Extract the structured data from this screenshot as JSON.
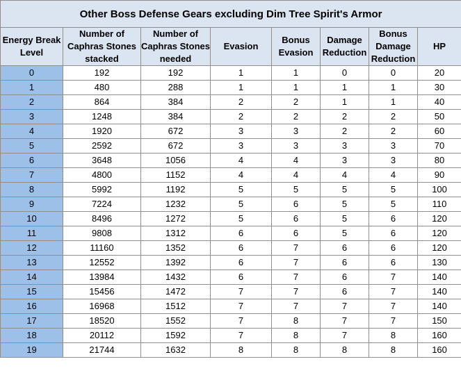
{
  "title": "Other Boss Defense Gears excluding Dim Tree Spirit's Armor",
  "headers": [
    "Energy Break Level",
    "Number of Caphras Stones stacked",
    "Number of Caphras Stones needed",
    "Evasion",
    "Bonus Evasion",
    "Damage Reduction",
    "Bonus Damage Reduction",
    "HP"
  ],
  "rows": [
    [
      "0",
      "192",
      "192",
      "1",
      "1",
      "0",
      "0",
      "20"
    ],
    [
      "1",
      "480",
      "288",
      "1",
      "1",
      "1",
      "1",
      "30"
    ],
    [
      "2",
      "864",
      "384",
      "2",
      "2",
      "1",
      "1",
      "40"
    ],
    [
      "3",
      "1248",
      "384",
      "2",
      "2",
      "2",
      "2",
      "50"
    ],
    [
      "4",
      "1920",
      "672",
      "3",
      "3",
      "2",
      "2",
      "60"
    ],
    [
      "5",
      "2592",
      "672",
      "3",
      "3",
      "3",
      "3",
      "70"
    ],
    [
      "6",
      "3648",
      "1056",
      "4",
      "4",
      "3",
      "3",
      "80"
    ],
    [
      "7",
      "4800",
      "1152",
      "4",
      "4",
      "4",
      "4",
      "90"
    ],
    [
      "8",
      "5992",
      "1192",
      "5",
      "5",
      "5",
      "5",
      "100"
    ],
    [
      "9",
      "7224",
      "1232",
      "5",
      "6",
      "5",
      "5",
      "110"
    ],
    [
      "10",
      "8496",
      "1272",
      "5",
      "6",
      "5",
      "6",
      "120"
    ],
    [
      "11",
      "9808",
      "1312",
      "6",
      "6",
      "5",
      "6",
      "120"
    ],
    [
      "12",
      "11160",
      "1352",
      "6",
      "7",
      "6",
      "6",
      "120"
    ],
    [
      "13",
      "12552",
      "1392",
      "6",
      "7",
      "6",
      "6",
      "130"
    ],
    [
      "14",
      "13984",
      "1432",
      "6",
      "7",
      "6",
      "7",
      "140"
    ],
    [
      "15",
      "15456",
      "1472",
      "7",
      "7",
      "6",
      "7",
      "140"
    ],
    [
      "16",
      "16968",
      "1512",
      "7",
      "7",
      "7",
      "7",
      "140"
    ],
    [
      "17",
      "18520",
      "1552",
      "7",
      "8",
      "7",
      "7",
      "150"
    ],
    [
      "18",
      "20112",
      "1592",
      "7",
      "8",
      "7",
      "8",
      "160"
    ],
    [
      "19",
      "21744",
      "1632",
      "8",
      "8",
      "8",
      "8",
      "160"
    ]
  ],
  "colors": {
    "header_bg": "#dbe4f1",
    "level_cell_bg": "#9cc0e8",
    "border": "#8e8e8e"
  }
}
